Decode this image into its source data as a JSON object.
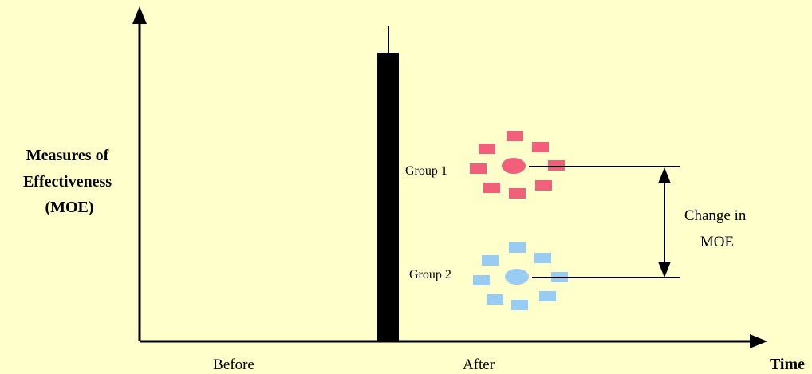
{
  "y_axis_label": [
    "Measures of",
    "Effectiveness",
    "(MOE)"
  ],
  "x_axis_label": "Time",
  "periods": {
    "before": "Before",
    "after": "After"
  },
  "groups": [
    {
      "label": "Group 1",
      "color": "#f0607a"
    },
    {
      "label": "Group 2",
      "color": "#99ccf2"
    }
  ],
  "change_label": [
    "Change in",
    "MOE"
  ],
  "colors": {
    "background": "#ffffcc",
    "intervention_bar": "#000000",
    "axis": "#000000"
  }
}
